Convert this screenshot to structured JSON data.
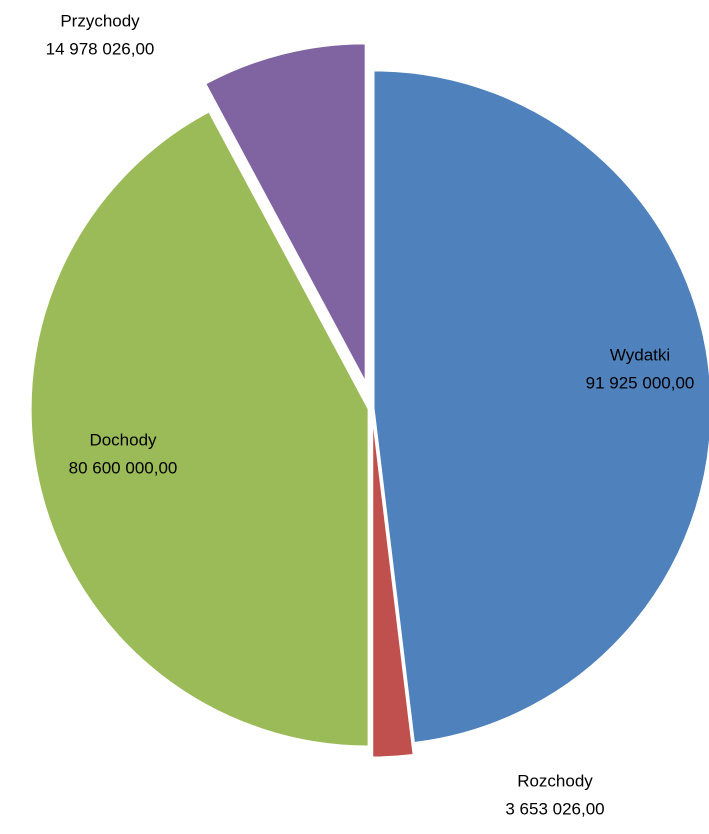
{
  "chart_data": {
    "type": "pie",
    "categories": [
      "Wydatki",
      "Rozchody",
      "Dochody",
      "Przychody"
    ],
    "values": [
      91925000,
      3653026,
      80600000,
      14978026
    ],
    "value_labels": [
      "91 925 000,00",
      "3 653 026,00",
      "80 600 000,00",
      "14 978 026,00"
    ],
    "colors": [
      "#4f81bd",
      "#c0504d",
      "#9bbb59",
      "#8064a2"
    ]
  }
}
